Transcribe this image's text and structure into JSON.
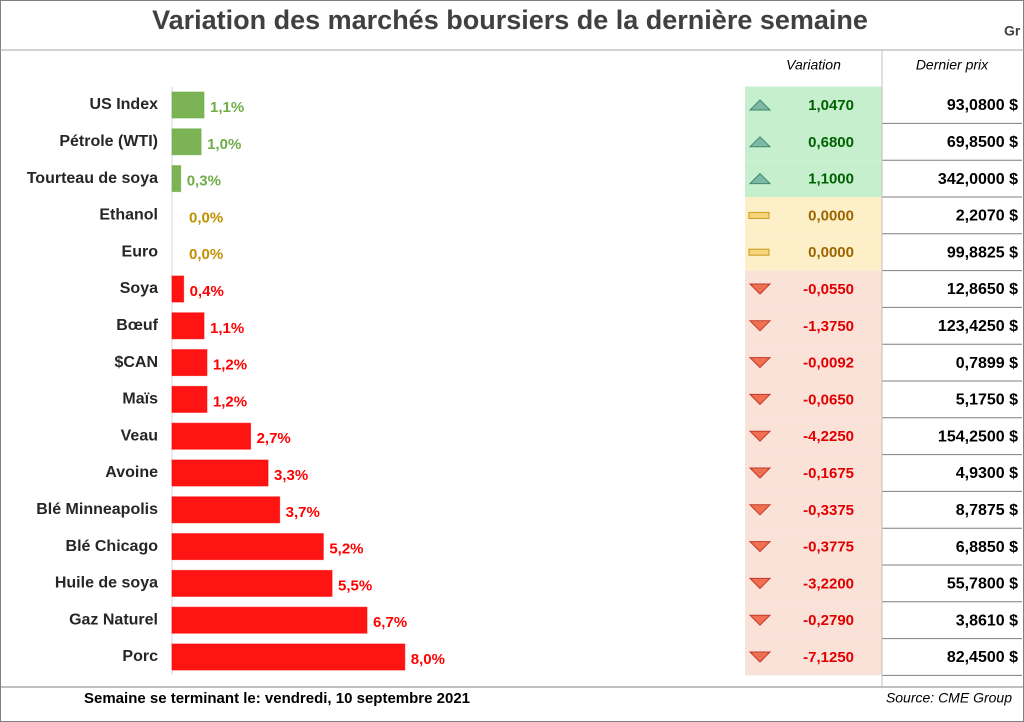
{
  "chart_data": {
    "type": "bar",
    "orientation": "horizontal",
    "title": "Variation des marchés boursiers de la dernière semaine",
    "corner_text": "Gr",
    "categories": [
      "US Index",
      "Pétrole (WTI)",
      "Tourteau de soya",
      "Ethanol",
      "Euro",
      "Soya",
      "Bœuf",
      "$CAN",
      "Maïs",
      "Veau",
      "Avoine",
      "Blé Minneapolis",
      "Blé Chicago",
      "Huile de soya",
      "Gaz Naturel",
      "Porc"
    ],
    "values": [
      1.1,
      1.0,
      0.3,
      0.0,
      0.0,
      0.4,
      1.1,
      1.2,
      1.2,
      2.7,
      3.3,
      3.7,
      5.2,
      5.5,
      6.7,
      8.0
    ],
    "value_labels": [
      "1,1%",
      "1,0%",
      "0,3%",
      "0,0%",
      "0,0%",
      "0,4%",
      "1,1%",
      "1,2%",
      "1,2%",
      "2,7%",
      "3,3%",
      "3,7%",
      "5,2%",
      "5,5%",
      "6,7%",
      "8,0%"
    ],
    "colors": [
      "#70ad47",
      "#70ad47",
      "#70ad47",
      "#bf9000",
      "#bf9000",
      "#ff0000",
      "#ff0000",
      "#ff0000",
      "#ff0000",
      "#ff0000",
      "#ff0000",
      "#ff0000",
      "#ff0000",
      "#ff0000",
      "#ff0000",
      "#ff0000"
    ],
    "table": {
      "columns": [
        "Variation",
        "Dernier prix"
      ],
      "rows": [
        {
          "variation": "1,0470",
          "price": "93,0800 $",
          "color": "#c6efce",
          "text_color": "#006100"
        },
        {
          "variation": "0,6800",
          "price": "69,8500 $",
          "color": "#c6efce",
          "text_color": "#006100"
        },
        {
          "variation": "1,1000",
          "price": "342,0000 $",
          "color": "#c6efce",
          "text_color": "#006100"
        },
        {
          "variation": "0,0000",
          "price": "2,2070 $",
          "color": "#fdf0c9",
          "text_color": "#9c6500"
        },
        {
          "variation": "0,0000",
          "price": "99,8825 $",
          "color": "#fdf0c9",
          "text_color": "#9c6500"
        },
        {
          "variation": "-0,0550",
          "price": "12,8650 $",
          "color": "#fbe2d9",
          "text_color": "#e00000"
        },
        {
          "variation": "-1,3750",
          "price": "123,4250 $",
          "color": "#fbe2d9",
          "text_color": "#e00000"
        },
        {
          "variation": "-0,0092",
          "price": "0,7899 $",
          "color": "#fbe2d9",
          "text_color": "#e00000"
        },
        {
          "variation": "-0,0650",
          "price": "5,1750 $",
          "color": "#fbe2d9",
          "text_color": "#e00000"
        },
        {
          "variation": "-4,2250",
          "price": "154,2500 $",
          "color": "#fbe2d9",
          "text_color": "#e00000"
        },
        {
          "variation": "-0,1675",
          "price": "4,9300 $",
          "color": "#fbe2d9",
          "text_color": "#e00000"
        },
        {
          "variation": "-0,3375",
          "price": "8,7875 $",
          "color": "#fbe2d9",
          "text_color": "#e00000"
        },
        {
          "variation": "-0,3775",
          "price": "6,8850 $",
          "color": "#fbe2d9",
          "text_color": "#e00000"
        },
        {
          "variation": "-3,2200",
          "price": "55,7800 $",
          "color": "#fbe2d9",
          "text_color": "#e00000"
        },
        {
          "variation": "-0,2790",
          "price": "3,8610 $",
          "color": "#fbe2d9",
          "text_color": "#e00000"
        },
        {
          "variation": "-7,1250",
          "price": "82,4500 $",
          "color": "#fbe2d9",
          "text_color": "#e00000"
        }
      ]
    },
    "footer": "Semaine se terminant le:  vendredi, 10 septembre 2021",
    "source": "Source: CME Group"
  }
}
